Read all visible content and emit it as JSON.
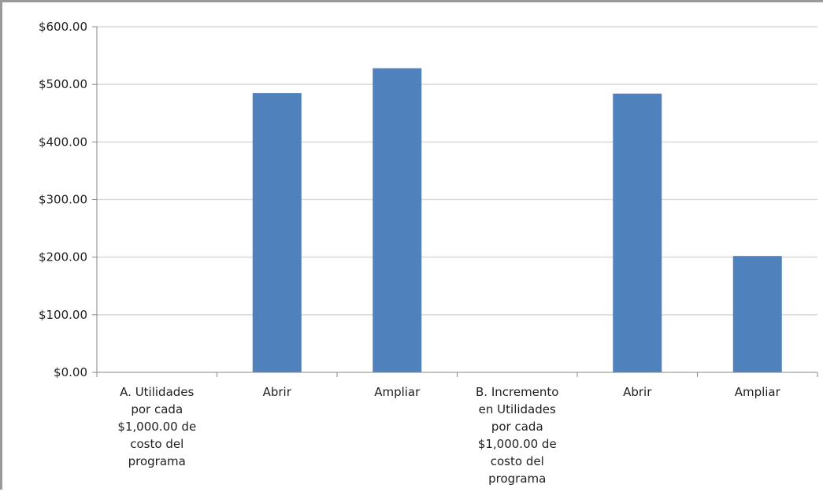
{
  "chart_data": {
    "type": "bar",
    "categories": [
      "A. Utilidades por cada $1,000.00 de costo del programa",
      "Abrir",
      "Ampliar",
      "B. Incremento en Utilidades por cada $1,000.00 de costo del programa",
      "Abrir",
      "Ampliar"
    ],
    "category_lines": [
      [
        "A. Utilidades",
        "por cada",
        "$1,000.00 de",
        "costo del",
        "programa"
      ],
      [
        "Abrir"
      ],
      [
        "Ampliar"
      ],
      [
        "B. Incremento",
        "en Utilidades",
        "por cada",
        "$1,000.00 de",
        "costo del",
        "programa"
      ],
      [
        "Abrir"
      ],
      [
        "Ampliar"
      ]
    ],
    "values": [
      null,
      485,
      528,
      null,
      484,
      202
    ],
    "ylim": [
      0,
      600
    ],
    "yticks": [
      0,
      100,
      200,
      300,
      400,
      500,
      600
    ],
    "ytick_labels": [
      "$0.00",
      "$100.00",
      "$200.00",
      "$300.00",
      "$400.00",
      "$500.00",
      "$600.00"
    ],
    "title": "",
    "xlabel": "",
    "ylabel": "",
    "grid": true,
    "legend": "none",
    "colors": {
      "bar": "#4f81bd",
      "grid": "#d9d9d9",
      "axis": "#888888",
      "text": "#1f1f1f"
    }
  }
}
